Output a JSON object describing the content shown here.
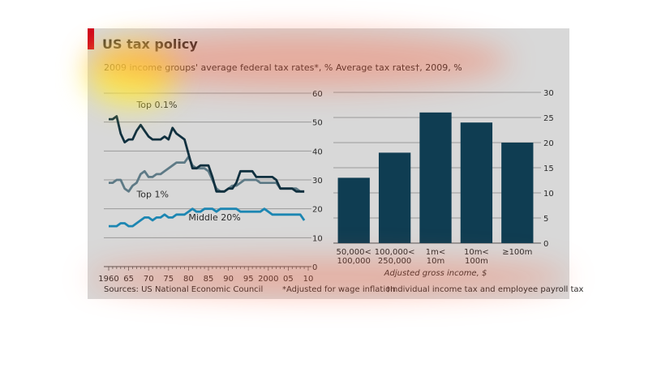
{
  "title": "US tax policy",
  "footer": {
    "sources": "Sources: US National Economic Council",
    "note_inflation": "*Adjusted for wage inflation",
    "note_tax": "†Individual income tax and employee payroll tax"
  },
  "chart_data": [
    {
      "type": "line",
      "title": "2009 income groups' average federal tax rates*, %",
      "xlim": [
        1960,
        2010
      ],
      "ylim": [
        0,
        60
      ],
      "x_tick_labels": [
        "1960",
        "65",
        "70",
        "75",
        "80",
        "85",
        "90",
        "95",
        "2000",
        "05",
        "10"
      ],
      "x_ticks": [
        1960,
        1965,
        1970,
        1975,
        1980,
        1985,
        1990,
        1995,
        2000,
        2005,
        2010
      ],
      "y_ticks": [
        0,
        10,
        20,
        30,
        40,
        50,
        60
      ],
      "grid": true,
      "series": [
        {
          "name": "Top 0.1%",
          "color": "#10303f",
          "x": [
            1960,
            1961,
            1962,
            1963,
            1964,
            1965,
            1966,
            1967,
            1968,
            1969,
            1970,
            1971,
            1972,
            1973,
            1974,
            1975,
            1976,
            1977,
            1978,
            1979,
            1980,
            1981,
            1982,
            1983,
            1984,
            1985,
            1986,
            1987,
            1988,
            1989,
            1990,
            1991,
            1992,
            1993,
            1994,
            1995,
            1996,
            1997,
            1998,
            1999,
            2000,
            2001,
            2002,
            2003,
            2004,
            2005,
            2006,
            2007,
            2008,
            2009
          ],
          "y": [
            51,
            51,
            52,
            46,
            43,
            44,
            44,
            47,
            49,
            47,
            45,
            44,
            44,
            44,
            45,
            44,
            48,
            46,
            45,
            44,
            39,
            34,
            34,
            35,
            35,
            35,
            31,
            26,
            26,
            26,
            27,
            27,
            29,
            33,
            33,
            33,
            33,
            31,
            31,
            31,
            31,
            31,
            30,
            27,
            27,
            27,
            27,
            26,
            26,
            26
          ]
        },
        {
          "name": "Top 1%",
          "color": "#5e7a86",
          "x": [
            1960,
            1961,
            1962,
            1963,
            1964,
            1965,
            1966,
            1967,
            1968,
            1969,
            1970,
            1971,
            1972,
            1973,
            1974,
            1975,
            1976,
            1977,
            1978,
            1979,
            1980,
            1981,
            1982,
            1983,
            1984,
            1985,
            1986,
            1987,
            1988,
            1989,
            1990,
            1991,
            1992,
            1993,
            1994,
            1995,
            1996,
            1997,
            1998,
            1999,
            2000,
            2001,
            2002,
            2003,
            2004,
            2005,
            2006,
            2007,
            2008,
            2009
          ],
          "y": [
            29,
            29,
            30,
            30,
            27,
            26,
            28,
            29,
            32,
            33,
            31,
            31,
            32,
            32,
            33,
            34,
            35,
            36,
            36,
            36,
            38,
            35,
            34,
            34,
            34,
            33,
            30,
            27,
            26,
            26,
            27,
            28,
            28,
            29,
            30,
            30,
            30,
            30,
            29,
            29,
            29,
            29,
            29,
            27,
            27,
            27,
            27,
            27,
            26,
            26
          ]
        },
        {
          "name": "Middle 20%",
          "color": "#1c86b2",
          "x": [
            1960,
            1961,
            1962,
            1963,
            1964,
            1965,
            1966,
            1967,
            1968,
            1969,
            1970,
            1971,
            1972,
            1973,
            1974,
            1975,
            1976,
            1977,
            1978,
            1979,
            1980,
            1981,
            1982,
            1983,
            1984,
            1985,
            1986,
            1987,
            1988,
            1989,
            1990,
            1991,
            1992,
            1993,
            1994,
            1995,
            1996,
            1997,
            1998,
            1999,
            2000,
            2001,
            2002,
            2003,
            2004,
            2005,
            2006,
            2007,
            2008,
            2009
          ],
          "y": [
            14,
            14,
            14,
            15,
            15,
            14,
            14,
            15,
            16,
            17,
            17,
            16,
            17,
            17,
            18,
            17,
            17,
            18,
            18,
            18,
            19,
            20,
            19,
            19,
            20,
            20,
            20,
            19,
            20,
            20,
            20,
            20,
            20,
            19,
            19,
            19,
            19,
            19,
            19,
            20,
            19,
            18,
            18,
            18,
            18,
            18,
            18,
            18,
            18,
            16
          ]
        }
      ]
    },
    {
      "type": "bar",
      "title": "Average tax rates†, 2009, %",
      "categories": [
        "50,000<\n100,000",
        "100,000<\n250,000",
        "1m<\n10m",
        "10m<\n100m",
        "≥100m"
      ],
      "values": [
        13,
        18,
        26,
        24,
        20
      ],
      "xlabel": "Adjusted gross income, $",
      "ylim": [
        0,
        30
      ],
      "y_ticks": [
        0,
        5,
        10,
        15,
        20,
        25,
        30
      ],
      "grid": true,
      "color": "#0f3d52"
    }
  ]
}
